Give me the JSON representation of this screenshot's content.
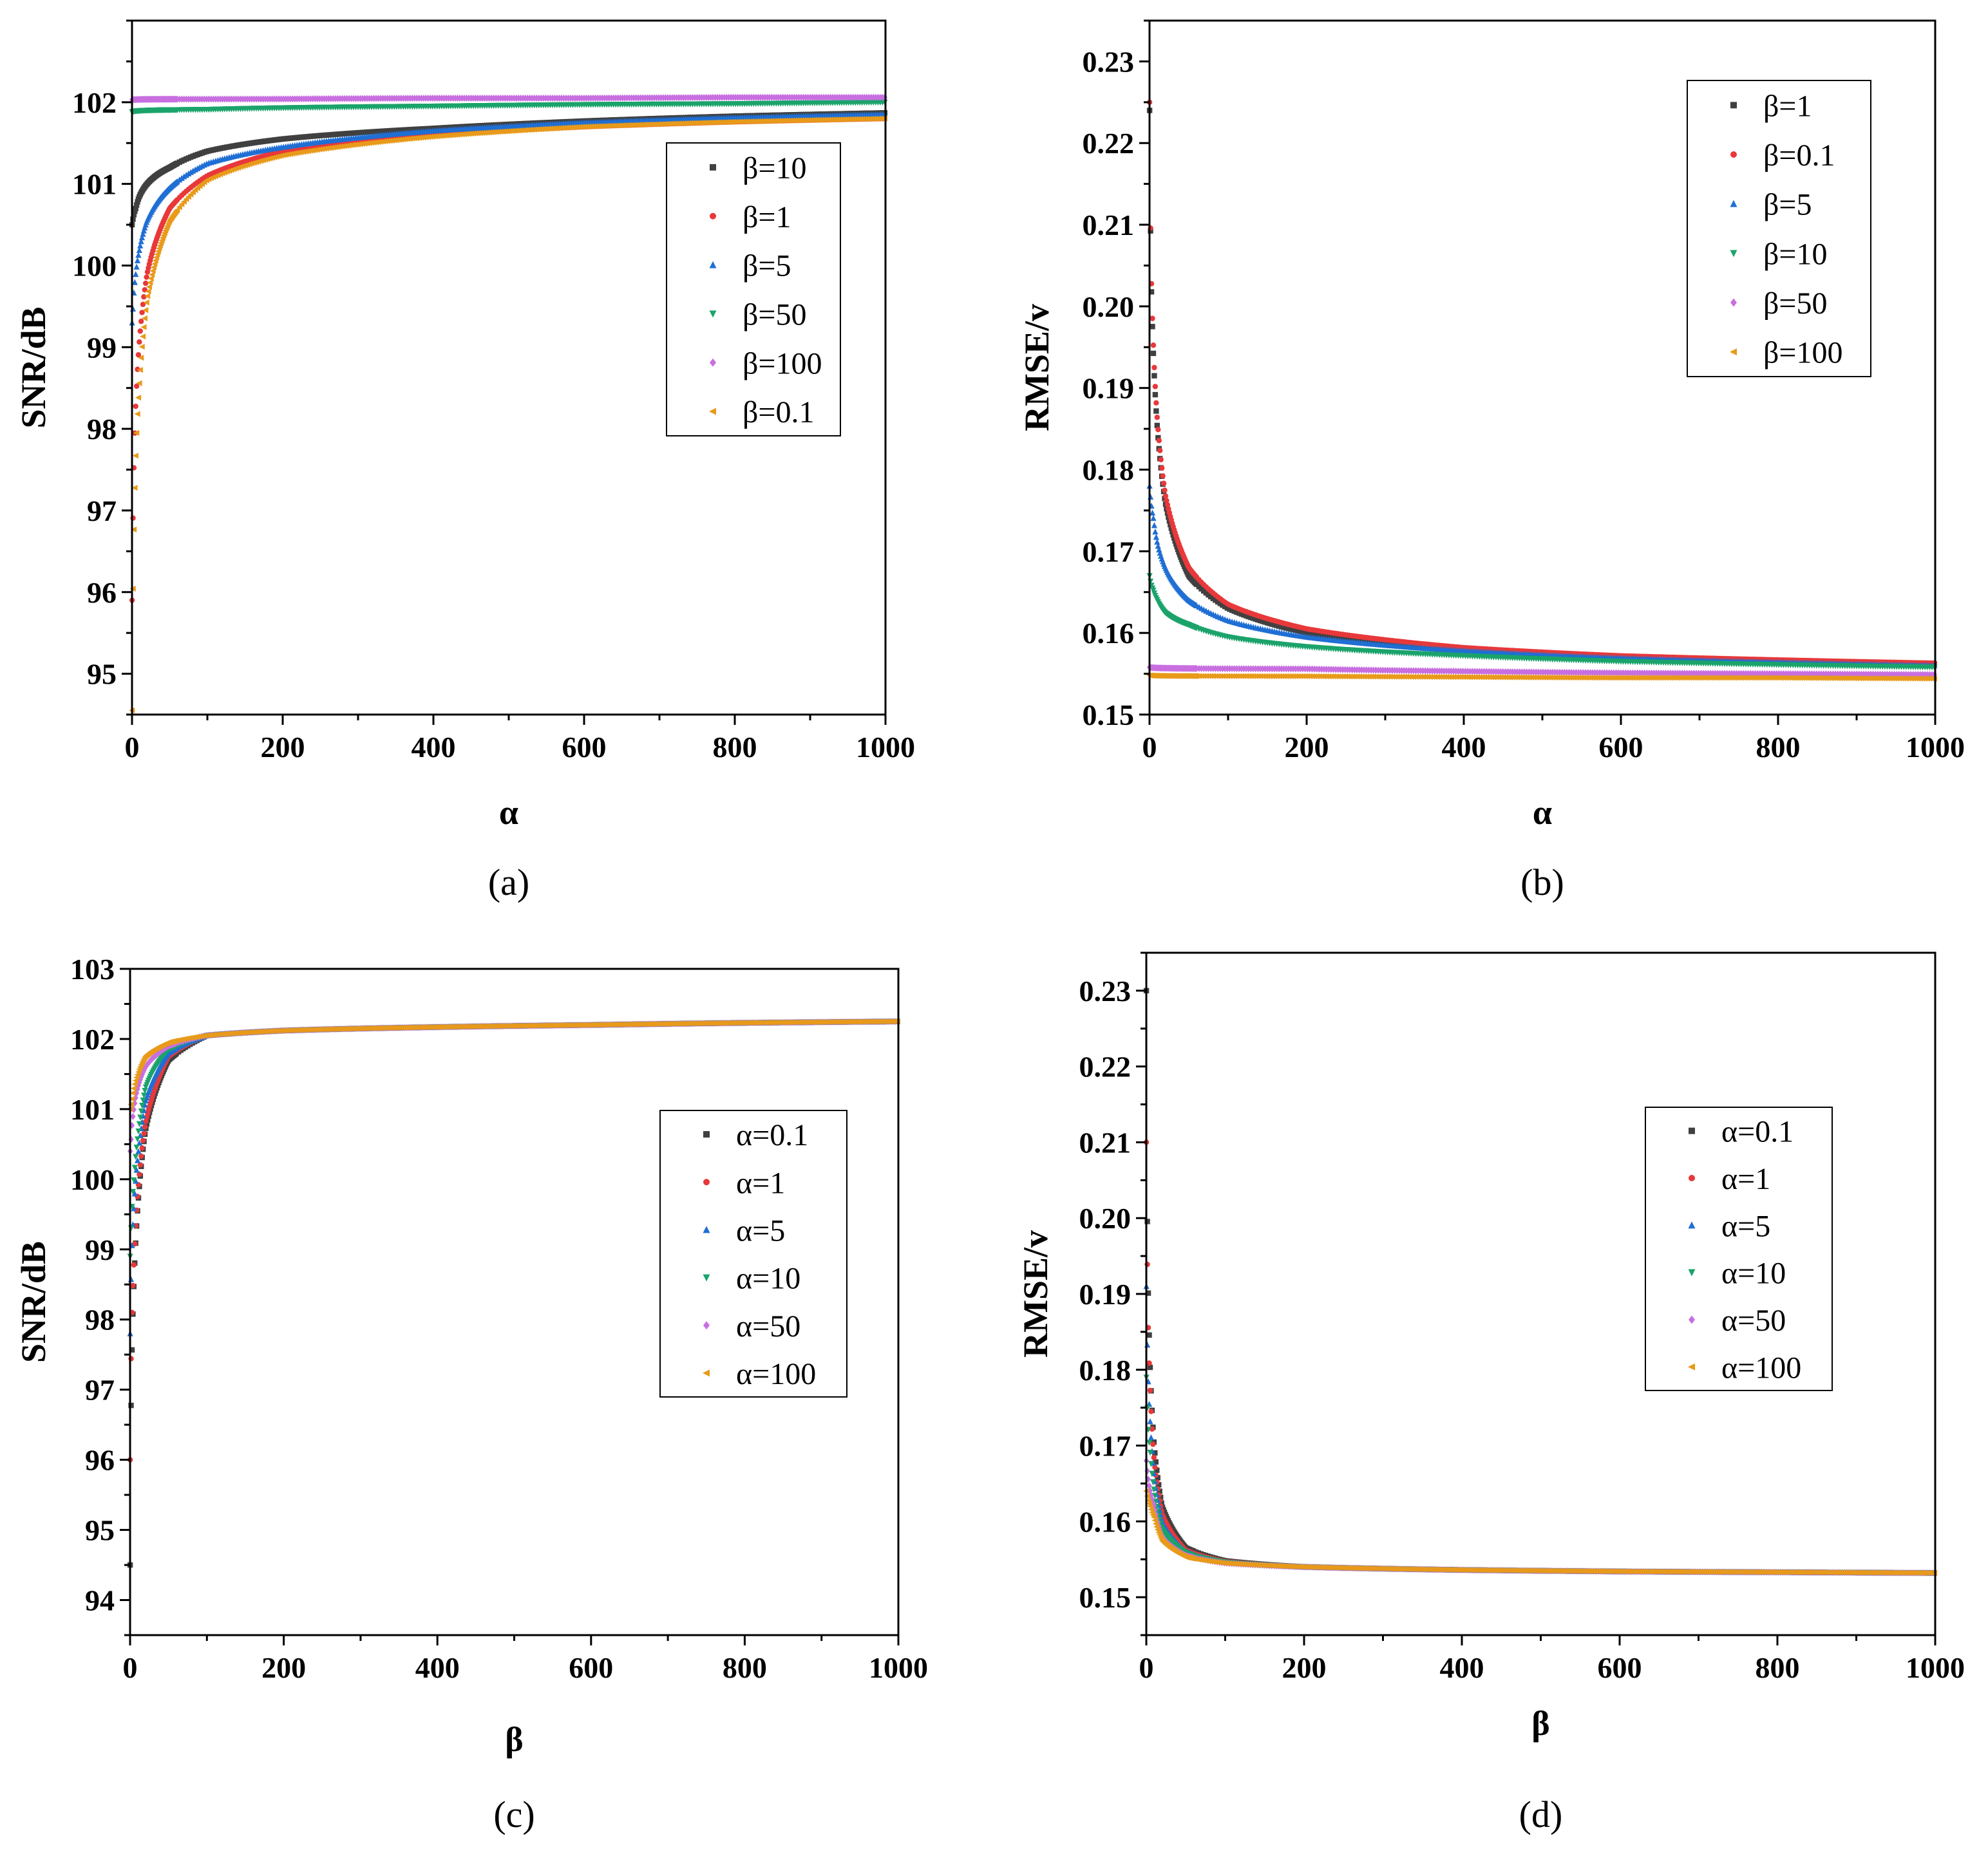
{
  "chart_data": [
    {
      "panel": "a",
      "type": "scatter",
      "caption": "(a)",
      "xlabel": "α",
      "ylabel": "SNR/dB",
      "xlim": [
        0,
        1000
      ],
      "ylim": [
        94.5,
        103
      ],
      "xticks": [
        0,
        200,
        400,
        600,
        800,
        1000
      ],
      "xtick_labels": [
        "0",
        "200",
        "400",
        "600",
        "800",
        "1000"
      ],
      "yticks": [
        95,
        96,
        97,
        98,
        99,
        100,
        101,
        102
      ],
      "ytick_labels": [
        "95",
        "96",
        "97",
        "98",
        "99",
        "100",
        "101",
        "102"
      ],
      "legend_position": "middle-right",
      "series": [
        {
          "name": "β=10",
          "color": "#404040",
          "marker": "square",
          "x": [
            0.1,
            1,
            2,
            5,
            10,
            20,
            50,
            100,
            200,
            400,
            600,
            800,
            1000
          ],
          "y": [
            100.5,
            100.55,
            100.6,
            100.7,
            100.85,
            101.0,
            101.2,
            101.4,
            101.55,
            101.68,
            101.77,
            101.83,
            101.87
          ]
        },
        {
          "name": "β=1",
          "color": "#e8383a",
          "marker": "circle",
          "x": [
            0.1,
            1,
            2,
            5,
            10,
            20,
            50,
            100,
            200,
            400,
            600,
            800,
            1000
          ],
          "y": [
            95.9,
            96.7,
            97.3,
            98.3,
            99.1,
            99.9,
            100.7,
            101.1,
            101.4,
            101.6,
            101.7,
            101.76,
            101.8
          ]
        },
        {
          "name": "β=5",
          "color": "#1f6fd4",
          "marker": "triangle-up",
          "x": [
            0.1,
            1,
            2,
            5,
            10,
            20,
            50,
            100,
            200,
            400,
            600,
            800,
            1000
          ],
          "y": [
            99.3,
            99.4,
            99.6,
            99.9,
            100.2,
            100.55,
            100.95,
            101.25,
            101.45,
            101.65,
            101.75,
            101.81,
            101.85
          ]
        },
        {
          "name": "β=50",
          "color": "#1aa36a",
          "marker": "triangle-down",
          "x": [
            0.1,
            100,
            200,
            400,
            600,
            800,
            1000
          ],
          "y": [
            101.88,
            101.91,
            101.93,
            101.95,
            101.97,
            101.98,
            102.0
          ]
        },
        {
          "name": "β=100",
          "color": "#c86fe0",
          "marker": "diamond",
          "x": [
            0.1,
            200,
            400,
            600,
            800,
            1000
          ],
          "y": [
            102.03,
            102.04,
            102.05,
            102.05,
            102.06,
            102.06
          ]
        },
        {
          "name": "β=0.1",
          "color": "#e89a1a",
          "marker": "triangle-left",
          "x": [
            0.1,
            1,
            2,
            5,
            10,
            20,
            50,
            100,
            200,
            400,
            600,
            800,
            1000
          ],
          "y": [
            94.55,
            95.8,
            96.5,
            97.7,
            98.6,
            99.6,
            100.55,
            101.05,
            101.35,
            101.58,
            101.7,
            101.76,
            101.8
          ]
        }
      ]
    },
    {
      "panel": "b",
      "type": "scatter",
      "caption": "(b)",
      "xlabel": "α",
      "ylabel": "RMSE/v",
      "xlim": [
        0,
        1000
      ],
      "ylim": [
        0.15,
        0.235
      ],
      "xticks": [
        0,
        200,
        400,
        600,
        800,
        1000
      ],
      "xtick_labels": [
        "0",
        "200",
        "400",
        "600",
        "800",
        "1000"
      ],
      "yticks": [
        0.15,
        0.16,
        0.17,
        0.18,
        0.19,
        0.2,
        0.21,
        0.22,
        0.23
      ],
      "ytick_labels": [
        "0.15",
        "0.16",
        "0.17",
        "0.18",
        "0.19",
        "0.20",
        "0.21",
        "0.22",
        "0.23"
      ],
      "legend_position": "top-right",
      "series": [
        {
          "name": "β=1",
          "color": "#404040",
          "marker": "square",
          "x": [
            0.1,
            1,
            2,
            5,
            10,
            20,
            50,
            100,
            200,
            400,
            600,
            800,
            1000
          ],
          "y": [
            0.224,
            0.212,
            0.204,
            0.194,
            0.185,
            0.176,
            0.167,
            0.163,
            0.16,
            0.158,
            0.157,
            0.1565,
            0.1562
          ]
        },
        {
          "name": "β=0.1",
          "color": "#e8383a",
          "marker": "circle",
          "x": [
            0.1,
            1,
            2,
            5,
            10,
            20,
            50,
            100,
            200,
            400,
            600,
            800,
            1000
          ],
          "y": [
            0.225,
            0.212,
            0.205,
            0.195,
            0.186,
            0.177,
            0.168,
            0.1635,
            0.1605,
            0.1582,
            0.1572,
            0.1567,
            0.1563
          ]
        },
        {
          "name": "β=5",
          "color": "#1f6fd4",
          "marker": "triangle-up",
          "x": [
            0.1,
            1,
            2,
            5,
            10,
            20,
            50,
            100,
            200,
            400,
            600,
            800,
            1000
          ],
          "y": [
            0.178,
            0.177,
            0.176,
            0.174,
            0.171,
            0.168,
            0.164,
            0.1615,
            0.1595,
            0.1578,
            0.1569,
            0.1564,
            0.156
          ]
        },
        {
          "name": "β=10",
          "color": "#1aa36a",
          "marker": "triangle-down",
          "x": [
            0.1,
            1,
            2,
            5,
            10,
            20,
            50,
            100,
            200,
            400,
            600,
            800,
            1000
          ],
          "y": [
            0.167,
            0.1665,
            0.166,
            0.1652,
            0.164,
            0.1625,
            0.161,
            0.1595,
            0.1583,
            0.1572,
            0.1565,
            0.1561,
            0.1558
          ]
        },
        {
          "name": "β=50",
          "color": "#c86fe0",
          "marker": "diamond",
          "x": [
            0.1,
            200,
            400,
            600,
            800,
            1000
          ],
          "y": [
            0.1558,
            0.1556,
            0.1553,
            0.1551,
            0.155,
            0.1549
          ]
        },
        {
          "name": "β=100",
          "color": "#e89a1a",
          "marker": "triangle-left",
          "x": [
            0.1,
            200,
            400,
            600,
            800,
            1000
          ],
          "y": [
            0.1548,
            0.1547,
            0.1546,
            0.1545,
            0.1545,
            0.1544
          ]
        }
      ]
    },
    {
      "panel": "c",
      "type": "scatter",
      "caption": "(c)",
      "xlabel": "β",
      "ylabel": "SNR/dB",
      "xlim": [
        0,
        1000
      ],
      "ylim": [
        93.5,
        103
      ],
      "xticks": [
        0,
        200,
        400,
        600,
        800,
        1000
      ],
      "xtick_labels": [
        "0",
        "200",
        "400",
        "600",
        "800",
        "1000"
      ],
      "yticks": [
        94,
        95,
        96,
        97,
        98,
        99,
        100,
        101,
        102,
        103
      ],
      "ytick_labels": [
        "94",
        "95",
        "96",
        "97",
        "98",
        "99",
        "100",
        "101",
        "102",
        "103"
      ],
      "legend_position": "middle-right",
      "series": [
        {
          "name": "α=0.1",
          "color": "#404040",
          "marker": "square",
          "x": [
            0.1,
            1,
            2,
            5,
            10,
            20,
            50,
            100,
            200,
            400,
            600,
            800,
            1000
          ],
          "y": [
            94.5,
            96.5,
            97.3,
            98.5,
            99.6,
            100.7,
            101.7,
            102.05,
            102.12,
            102.17,
            102.2,
            102.23,
            102.25
          ]
        },
        {
          "name": "α=1",
          "color": "#e8383a",
          "marker": "circle",
          "x": [
            0.1,
            1,
            2,
            5,
            10,
            20,
            50,
            100,
            200,
            400,
            600,
            800,
            1000
          ],
          "y": [
            96.0,
            97.2,
            97.9,
            98.8,
            99.8,
            100.8,
            101.75,
            102.05,
            102.12,
            102.17,
            102.2,
            102.23,
            102.25
          ]
        },
        {
          "name": "α=5",
          "color": "#1f6fd4",
          "marker": "triangle-up",
          "x": [
            0.1,
            1,
            2,
            5,
            10,
            20,
            50,
            100,
            200,
            400,
            600,
            800,
            1000
          ],
          "y": [
            97.8,
            98.4,
            98.9,
            99.6,
            100.3,
            101.1,
            101.8,
            102.05,
            102.12,
            102.17,
            102.2,
            102.23,
            102.25
          ]
        },
        {
          "name": "α=10",
          "color": "#1aa36a",
          "marker": "triangle-down",
          "x": [
            0.1,
            1,
            2,
            5,
            10,
            20,
            50,
            100,
            200,
            400,
            600,
            800,
            1000
          ],
          "y": [
            98.9,
            99.2,
            99.5,
            100.0,
            100.6,
            101.3,
            101.85,
            102.05,
            102.12,
            102.17,
            102.2,
            102.23,
            102.25
          ]
        },
        {
          "name": "α=50",
          "color": "#c86fe0",
          "marker": "diamond",
          "x": [
            0.1,
            1,
            2,
            5,
            10,
            20,
            50,
            100,
            200,
            400,
            600,
            800,
            1000
          ],
          "y": [
            100.4,
            100.5,
            100.7,
            101.0,
            101.3,
            101.6,
            101.9,
            102.05,
            102.12,
            102.17,
            102.2,
            102.23,
            102.25
          ]
        },
        {
          "name": "α=100",
          "color": "#e89a1a",
          "marker": "triangle-left",
          "x": [
            0.1,
            1,
            2,
            5,
            10,
            20,
            50,
            100,
            200,
            400,
            600,
            800,
            1000
          ],
          "y": [
            101.0,
            101.05,
            101.1,
            101.3,
            101.5,
            101.75,
            101.95,
            102.05,
            102.12,
            102.17,
            102.2,
            102.23,
            102.25
          ]
        }
      ]
    },
    {
      "panel": "d",
      "type": "scatter",
      "caption": "(d)",
      "xlabel": "β",
      "ylabel": "RMSE/v",
      "xlim": [
        0,
        1000
      ],
      "ylim": [
        0.145,
        0.235
      ],
      "xticks": [
        0,
        200,
        400,
        600,
        800,
        1000
      ],
      "xtick_labels": [
        "0",
        "200",
        "400",
        "600",
        "800",
        "1000"
      ],
      "yticks": [
        0.15,
        0.16,
        0.17,
        0.18,
        0.19,
        0.2,
        0.21,
        0.22,
        0.23
      ],
      "ytick_labels": [
        "0.15",
        "0.16",
        "0.17",
        "0.18",
        "0.19",
        "0.20",
        "0.21",
        "0.22",
        "0.23"
      ],
      "legend_position": "middle-right",
      "series": [
        {
          "name": "α=0.1",
          "color": "#404040",
          "marker": "square",
          "x": [
            0.1,
            1,
            2,
            5,
            10,
            20,
            50,
            100,
            200,
            400,
            600,
            800,
            1000
          ],
          "y": [
            0.23,
            0.203,
            0.193,
            0.18,
            0.17,
            0.162,
            0.1565,
            0.1548,
            0.154,
            0.1536,
            0.1534,
            0.1533,
            0.1532
          ]
        },
        {
          "name": "α=1",
          "color": "#e8383a",
          "marker": "circle",
          "x": [
            0.1,
            1,
            2,
            5,
            10,
            20,
            50,
            100,
            200,
            400,
            600,
            800,
            1000
          ],
          "y": [
            0.21,
            0.197,
            0.188,
            0.177,
            0.168,
            0.161,
            0.1562,
            0.1547,
            0.154,
            0.1536,
            0.1534,
            0.1533,
            0.1532
          ]
        },
        {
          "name": "α=5",
          "color": "#1f6fd4",
          "marker": "triangle-up",
          "x": [
            0.1,
            1,
            2,
            5,
            10,
            20,
            50,
            100,
            200,
            400,
            600,
            800,
            1000
          ],
          "y": [
            0.191,
            0.185,
            0.18,
            0.173,
            0.166,
            0.16,
            0.156,
            0.1546,
            0.154,
            0.1536,
            0.1534,
            0.1533,
            0.1532
          ]
        },
        {
          "name": "α=10",
          "color": "#1aa36a",
          "marker": "triangle-down",
          "x": [
            0.1,
            1,
            2,
            5,
            10,
            20,
            50,
            100,
            200,
            400,
            600,
            800,
            1000
          ],
          "y": [
            0.179,
            0.176,
            0.173,
            0.169,
            0.164,
            0.159,
            0.1558,
            0.1546,
            0.154,
            0.1536,
            0.1534,
            0.1533,
            0.1532
          ]
        },
        {
          "name": "α=50",
          "color": "#c86fe0",
          "marker": "diamond",
          "x": [
            0.1,
            1,
            2,
            5,
            10,
            20,
            50,
            100,
            200,
            400,
            600,
            800,
            1000
          ],
          "y": [
            0.168,
            0.167,
            0.166,
            0.164,
            0.162,
            0.158,
            0.1555,
            0.1545,
            0.154,
            0.1536,
            0.1534,
            0.1533,
            0.1532
          ]
        },
        {
          "name": "α=100",
          "color": "#e89a1a",
          "marker": "triangle-left",
          "x": [
            0.1,
            1,
            2,
            5,
            10,
            20,
            50,
            100,
            200,
            400,
            600,
            800,
            1000
          ],
          "y": [
            0.164,
            0.1635,
            0.163,
            0.162,
            0.1605,
            0.1575,
            0.1553,
            0.1545,
            0.154,
            0.1536,
            0.1534,
            0.1533,
            0.1532
          ]
        }
      ]
    }
  ]
}
